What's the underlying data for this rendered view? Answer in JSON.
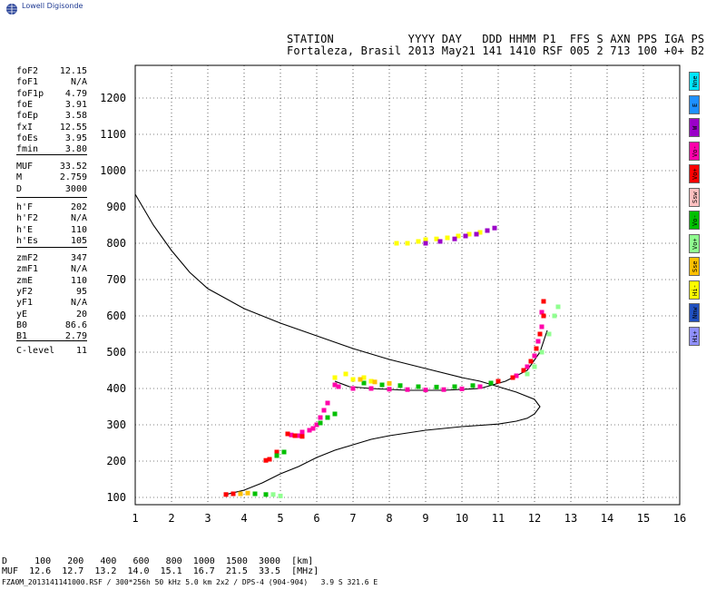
{
  "brand": {
    "logo_text": "Lowell Digisonde"
  },
  "header": {
    "line1": "STATION           YYYY DAY   DDD HHMM P1  FFS S AXN PPS IGA PS",
    "line2": "Fortaleza, Brasil 2013 May21 141 1410 RSF 005 2 713 100 +0+ B2"
  },
  "params": [
    [
      {
        "name": "foF2",
        "value": "12.15"
      },
      {
        "name": "foF1",
        "value": "N/A"
      },
      {
        "name": "foF1p",
        "value": "4.79"
      },
      {
        "name": "foE",
        "value": "3.91"
      },
      {
        "name": "foEp",
        "value": "3.58"
      },
      {
        "name": "fxI",
        "value": "12.55"
      },
      {
        "name": "foEs",
        "value": "3.95"
      },
      {
        "name": "fmin",
        "value": "3.80"
      }
    ],
    [
      {
        "name": "MUF",
        "value": "33.52"
      },
      {
        "name": "M",
        "value": "2.759"
      },
      {
        "name": "D",
        "value": "3000"
      }
    ],
    [
      {
        "name": "h'F",
        "value": "202"
      },
      {
        "name": "h'F2",
        "value": "N/A"
      },
      {
        "name": "h'E",
        "value": "110"
      },
      {
        "name": "h'Es",
        "value": "105"
      }
    ],
    [
      {
        "name": "zmF2",
        "value": "347"
      },
      {
        "name": "zmF1",
        "value": "N/A"
      },
      {
        "name": "zmE",
        "value": "110"
      },
      {
        "name": "yF2",
        "value": "95"
      },
      {
        "name": "yF1",
        "value": "N/A"
      },
      {
        "name": "yE",
        "value": "20"
      },
      {
        "name": "B0",
        "value": "86.6"
      },
      {
        "name": "B1",
        "value": "2.79"
      }
    ],
    [
      {
        "name": "C-level",
        "value": "11"
      }
    ]
  ],
  "side_buttons": [
    {
      "label": "Nne",
      "color": "#00e5ff"
    },
    {
      "label": "E",
      "color": "#1e90ff"
    },
    {
      "label": "W",
      "color": "#9b00c8"
    },
    {
      "label": "Vo-",
      "color": "#ff00aa"
    },
    {
      "label": "Vo+",
      "color": "#ff0000"
    },
    {
      "label": "Ssw",
      "color": "#ffc0c0"
    },
    {
      "label": "Vo-",
      "color": "#00c000"
    },
    {
      "label": "Vo+",
      "color": "#90ff90"
    },
    {
      "label": "Sse",
      "color": "#ffc000"
    },
    {
      "label": "Hi-",
      "color": "#ffff00"
    },
    {
      "label": "Nnw",
      "color": "#2050c0"
    },
    {
      "label": "Hi+",
      "color": "#9090ff"
    }
  ],
  "footer": {
    "line1": "D     100   200   400   600   800  1000  1500  3000  [km]",
    "line2": "MUF  12.6  12.7  13.2  14.0  15.1  16.7  21.5  33.5  [MHz]",
    "file": "FZA0M_2013141141000.RSF / 300*256h 50 kHz 5.0 km 2x2 / DPS-4 (904-904)   3.9 S 321.6 E"
  },
  "chart_data": {
    "type": "scatter",
    "xlim": [
      1,
      16
    ],
    "ylim": [
      80,
      1290
    ],
    "x_ticks": [
      1,
      2,
      3,
      4,
      5,
      6,
      7,
      8,
      9,
      10,
      11,
      12,
      13,
      14,
      15,
      16
    ],
    "y_ticks": [
      100,
      200,
      300,
      400,
      500,
      600,
      700,
      800,
      900,
      1000,
      1100,
      1200
    ],
    "grid": true,
    "series": [
      {
        "kind": "line",
        "color": "#000000",
        "points": [
          [
            1.0,
            935
          ],
          [
            1.5,
            850
          ],
          [
            2.0,
            780
          ],
          [
            2.5,
            720
          ],
          [
            3.0,
            675
          ],
          [
            4.0,
            620
          ],
          [
            5.0,
            580
          ],
          [
            6.0,
            545
          ],
          [
            7.0,
            510
          ],
          [
            8.0,
            480
          ],
          [
            9.0,
            455
          ],
          [
            10.0,
            430
          ],
          [
            10.5,
            420
          ],
          [
            11.0,
            405
          ],
          [
            11.5,
            390
          ],
          [
            12.0,
            370
          ],
          [
            12.15,
            350
          ],
          [
            12.0,
            330
          ],
          [
            11.8,
            318
          ],
          [
            11.5,
            310
          ],
          [
            11.0,
            302
          ],
          [
            10.0,
            295
          ],
          [
            9.0,
            285
          ],
          [
            8.0,
            270
          ],
          [
            7.5,
            260
          ],
          [
            7.0,
            245
          ],
          [
            6.5,
            230
          ],
          [
            6.0,
            210
          ],
          [
            5.5,
            185
          ],
          [
            5.0,
            165
          ],
          [
            4.5,
            140
          ],
          [
            4.0,
            120
          ],
          [
            3.5,
            108
          ]
        ]
      },
      {
        "kind": "line",
        "color": "#000000",
        "points": [
          [
            6.5,
            420
          ],
          [
            6.9,
            405
          ],
          [
            7.5,
            400
          ],
          [
            8.5,
            395
          ],
          [
            9.5,
            395
          ],
          [
            10.5,
            400
          ],
          [
            11.2,
            420
          ],
          [
            11.8,
            450
          ],
          [
            12.15,
            500
          ],
          [
            12.35,
            560
          ]
        ]
      },
      {
        "kind": "points",
        "color": "#ff00aa",
        "points": [
          [
            6.5,
            410
          ],
          [
            6.6,
            405
          ],
          [
            7.0,
            400
          ],
          [
            7.5,
            400
          ],
          [
            8.0,
            398
          ],
          [
            8.5,
            397
          ],
          [
            9.0,
            396
          ],
          [
            9.5,
            397
          ],
          [
            10.0,
            399
          ],
          [
            10.5,
            405
          ],
          [
            11.0,
            420
          ],
          [
            11.5,
            435
          ],
          [
            11.8,
            460
          ],
          [
            12.0,
            490
          ],
          [
            12.1,
            530
          ],
          [
            12.2,
            570
          ],
          [
            12.2,
            610
          ],
          [
            6.3,
            360
          ],
          [
            6.2,
            340
          ],
          [
            6.1,
            320
          ],
          [
            6.0,
            300
          ],
          [
            5.9,
            290
          ],
          [
            5.8,
            285
          ],
          [
            5.6,
            280
          ],
          [
            5.5,
            270
          ],
          [
            5.3,
            272
          ]
        ]
      },
      {
        "kind": "points",
        "color": "#ff0000",
        "points": [
          [
            11.0,
            420
          ],
          [
            11.4,
            430
          ],
          [
            11.7,
            450
          ],
          [
            11.9,
            475
          ],
          [
            12.05,
            510
          ],
          [
            12.15,
            550
          ],
          [
            12.25,
            600
          ],
          [
            12.25,
            640
          ],
          [
            5.2,
            275
          ],
          [
            5.4,
            270
          ],
          [
            5.6,
            268
          ],
          [
            4.9,
            225
          ],
          [
            4.7,
            205
          ],
          [
            4.6,
            202
          ],
          [
            3.5,
            108
          ],
          [
            3.7,
            110
          ]
        ]
      },
      {
        "kind": "points",
        "color": "#00c000",
        "points": [
          [
            7.3,
            415
          ],
          [
            7.8,
            410
          ],
          [
            8.3,
            408
          ],
          [
            8.8,
            405
          ],
          [
            9.3,
            404
          ],
          [
            9.8,
            405
          ],
          [
            10.3,
            408
          ],
          [
            10.8,
            415
          ],
          [
            6.1,
            305
          ],
          [
            6.3,
            320
          ],
          [
            6.5,
            330
          ],
          [
            4.9,
            215
          ],
          [
            5.1,
            225
          ],
          [
            4.3,
            110
          ],
          [
            4.6,
            108
          ]
        ]
      },
      {
        "kind": "points",
        "color": "#90ff90",
        "points": [
          [
            11.8,
            440
          ],
          [
            12.0,
            460
          ],
          [
            12.2,
            500
          ],
          [
            12.4,
            550
          ],
          [
            12.55,
            600
          ],
          [
            12.65,
            625
          ],
          [
            4.8,
            108
          ],
          [
            5.0,
            104
          ]
        ]
      },
      {
        "kind": "points",
        "color": "#ffff00",
        "points": [
          [
            6.5,
            430
          ],
          [
            6.8,
            440
          ],
          [
            7.0,
            425
          ],
          [
            7.3,
            430
          ],
          [
            7.5,
            420
          ],
          [
            8.2,
            800
          ],
          [
            8.5,
            800
          ],
          [
            8.8,
            805
          ],
          [
            9.0,
            810
          ],
          [
            9.3,
            812
          ],
          [
            9.6,
            815
          ],
          [
            9.9,
            820
          ],
          [
            10.2,
            825
          ],
          [
            10.5,
            830
          ]
        ]
      },
      {
        "kind": "points",
        "color": "#9b00c8",
        "points": [
          [
            9.0,
            800
          ],
          [
            9.4,
            805
          ],
          [
            9.8,
            812
          ],
          [
            10.1,
            820
          ],
          [
            10.4,
            825
          ],
          [
            10.7,
            835
          ],
          [
            10.9,
            842
          ]
        ]
      },
      {
        "kind": "points",
        "color": "#ffc000",
        "points": [
          [
            7.2,
            425
          ],
          [
            7.6,
            418
          ],
          [
            8.0,
            414
          ],
          [
            3.9,
            110
          ],
          [
            4.1,
            112
          ]
        ]
      }
    ]
  }
}
